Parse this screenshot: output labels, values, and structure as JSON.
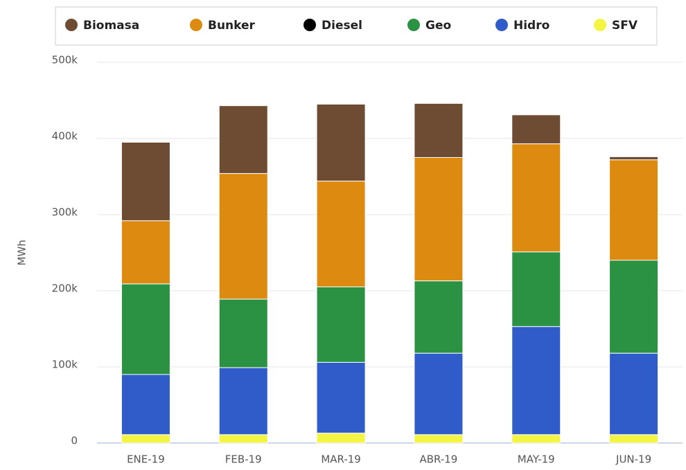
{
  "chart_data": {
    "type": "stacked_bar",
    "y_label": "MWh",
    "categories": [
      "ENE-19",
      "FEB-19",
      "MAR-19",
      "ABR-19",
      "MAY-19",
      "JUN-19"
    ],
    "series": [
      {
        "name": "SFV",
        "color": "#f4f443",
        "values": [
          11000,
          11000,
          13000,
          11000,
          11000,
          11000
        ]
      },
      {
        "name": "Hidro",
        "color": "#2f5cc9",
        "values": [
          79000,
          88000,
          93000,
          107000,
          142000,
          107000
        ]
      },
      {
        "name": "Geo",
        "color": "#2b9143",
        "values": [
          119000,
          90000,
          99000,
          95000,
          98000,
          122000
        ]
      },
      {
        "name": "Diesel",
        "color": "#000000",
        "values": [
          0,
          0,
          0,
          0,
          0,
          0
        ]
      },
      {
        "name": "Bunker",
        "color": "#dc8a10",
        "values": [
          83000,
          165000,
          139000,
          162000,
          142000,
          132000
        ]
      },
      {
        "name": "Biomasa",
        "color": "#6e4c34",
        "values": [
          103000,
          89000,
          101000,
          71000,
          38000,
          4000
        ]
      }
    ],
    "legend_order": [
      "Biomasa",
      "Bunker",
      "Diesel",
      "Geo",
      "Hidro",
      "SFV"
    ],
    "ylim": [
      0,
      500000
    ],
    "yticks": [
      0,
      {
        "value": 100000,
        "label": "100k"
      },
      {
        "value": 200000,
        "label": "200k"
      },
      {
        "value": 300000,
        "label": "300k"
      },
      {
        "value": 400000,
        "label": "400k"
      },
      {
        "value": 500000,
        "label": "500k"
      }
    ],
    "grid": true
  }
}
